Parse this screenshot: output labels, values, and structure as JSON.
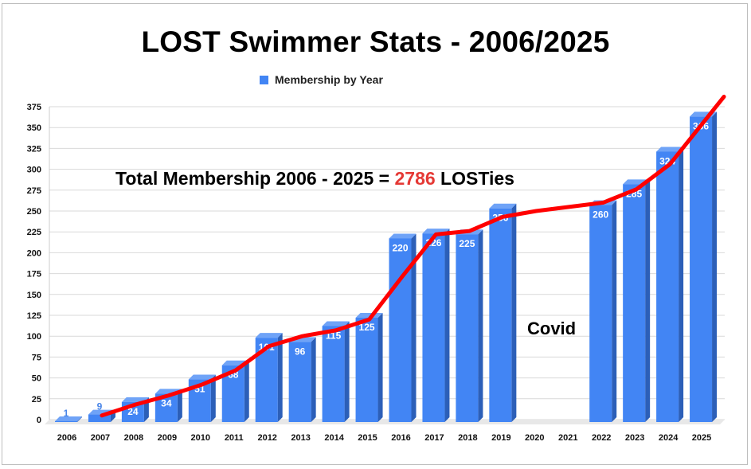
{
  "chart_data": {
    "type": "bar",
    "title": "LOST Swimmer Stats - 2006/2025",
    "legend": "Membership by Year",
    "legend_position": "top",
    "categories": [
      "2006",
      "2007",
      "2008",
      "2009",
      "2010",
      "2011",
      "2012",
      "2013",
      "2014",
      "2015",
      "2016",
      "2017",
      "2018",
      "2019",
      "2020",
      "2021",
      "2022",
      "2023",
      "2024",
      "2025"
    ],
    "series": [
      {
        "name": "Membership by Year",
        "color": "#4285f4",
        "values": [
          1,
          9,
          24,
          34,
          51,
          68,
          101,
          96,
          115,
          125,
          220,
          226,
          225,
          256,
          null,
          null,
          260,
          285,
          324,
          366
        ]
      }
    ],
    "trend_line": {
      "color": "#ff0000",
      "values": [
        null,
        5,
        18,
        29,
        42,
        59,
        88,
        100,
        107,
        120,
        172,
        222,
        226,
        243,
        250,
        255,
        260,
        276,
        306,
        356
      ]
    },
    "ylim": [
      0,
      375
    ],
    "yticks": [
      0,
      25,
      50,
      75,
      100,
      125,
      150,
      175,
      200,
      225,
      250,
      275,
      300,
      325,
      350,
      375
    ],
    "grid": true,
    "annotations": {
      "total_prefix": "Total Membership 2006 - 2025 = ",
      "total_value": "2786",
      "total_suffix": " LOSTies",
      "covid": "Covid"
    }
  }
}
